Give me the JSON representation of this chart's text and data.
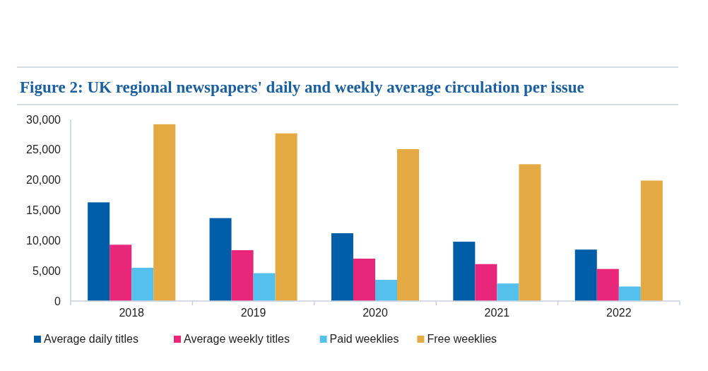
{
  "chart_data": {
    "type": "bar",
    "title": "Figure 2: UK regional newspapers' daily and weekly average circulation per issue",
    "categories": [
      "2018",
      "2019",
      "2020",
      "2021",
      "2022"
    ],
    "series": [
      {
        "name": "Average daily titles",
        "color": "#005ea8",
        "values": [
          16300,
          13700,
          11200,
          9800,
          8500
        ]
      },
      {
        "name": "Average weekly titles",
        "color": "#e8267a",
        "values": [
          9300,
          8400,
          7000,
          6100,
          5300
        ]
      },
      {
        "name": "Paid weeklies",
        "color": "#55c0ec",
        "values": [
          5500,
          4600,
          3500,
          2900,
          2400
        ]
      },
      {
        "name": "Free weeklies",
        "color": "#e6aa45",
        "values": [
          29200,
          27700,
          25100,
          22600,
          19900
        ]
      }
    ],
    "ylim": [
      0,
      30000
    ],
    "yticks": [
      {
        "value": 0,
        "label": "0"
      },
      {
        "value": 5000,
        "label": "5,000"
      },
      {
        "value": 10000,
        "label": "10,000"
      },
      {
        "value": 15000,
        "label": "15,000"
      },
      {
        "value": 20000,
        "label": "20,000"
      },
      {
        "value": 25000,
        "label": "25,000"
      },
      {
        "value": 30000,
        "label": "30,000"
      }
    ],
    "grid": false,
    "legend": "bottom"
  }
}
